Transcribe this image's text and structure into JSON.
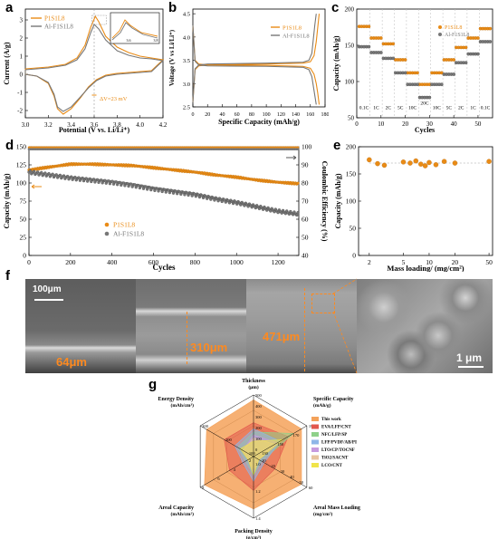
{
  "panels": {
    "a": "a",
    "b": "b",
    "c": "c",
    "d": "d",
    "e": "e",
    "f": "f",
    "g": "g"
  },
  "colors": {
    "orange": "#e98b16",
    "gray": "#777777",
    "gray_dark": "#555555",
    "dash": "#c9c9c9"
  },
  "chart_data": [
    {
      "id": "a",
      "type": "line",
      "xlabel": "Potential (V vs. Li/Li⁺)",
      "ylabel": "Current (A/g)",
      "xlim": [
        3.0,
        4.2
      ],
      "ylim": [
        -2.4,
        3.6
      ],
      "xticks": [
        "3.0",
        "3.2",
        "3.4",
        "3.6",
        "3.8",
        "4.0",
        "4.2"
      ],
      "yticks": [
        "-2",
        "-1",
        "0",
        "1",
        "2",
        "3"
      ],
      "annotation": "ΔV=23 mV",
      "inset_ticks": [
        "3.6",
        "3.8"
      ],
      "series": [
        {
          "name": "P1S1L8",
          "color": "#e98b16",
          "x": [
            3.0,
            3.2,
            3.35,
            3.45,
            3.52,
            3.57,
            3.61,
            3.64,
            3.7,
            3.8,
            3.9,
            4.0,
            4.1,
            4.2,
            4.1,
            4.0,
            3.9,
            3.8,
            3.7,
            3.62,
            3.55,
            3.48,
            3.4,
            3.33,
            3.28,
            3.25,
            3.2,
            3.1,
            3.0
          ],
          "y": [
            0.3,
            0.4,
            0.55,
            0.9,
            1.6,
            2.6,
            3.2,
            2.9,
            2.1,
            1.5,
            1.2,
            1.0,
            0.9,
            0.8,
            0.2,
            0.15,
            0.1,
            0.05,
            -0.05,
            -0.3,
            -0.7,
            -1.3,
            -1.9,
            -2.2,
            -1.9,
            -1.2,
            -0.5,
            -0.1,
            0.0
          ]
        },
        {
          "name": "Al-F1S1L8",
          "color": "#777777",
          "x": [
            3.0,
            3.2,
            3.35,
            3.45,
            3.52,
            3.57,
            3.6,
            3.64,
            3.7,
            3.8,
            3.9,
            4.0,
            4.1,
            4.2,
            4.1,
            4.0,
            3.9,
            3.8,
            3.7,
            3.62,
            3.55,
            3.48,
            3.4,
            3.33,
            3.28,
            3.25,
            3.2,
            3.1,
            3.0
          ],
          "y": [
            0.25,
            0.35,
            0.5,
            0.8,
            1.4,
            2.3,
            2.75,
            2.5,
            1.9,
            1.3,
            1.05,
            0.9,
            0.85,
            0.75,
            0.15,
            0.1,
            0.05,
            0.0,
            -0.1,
            -0.35,
            -0.75,
            -1.25,
            -1.8,
            -2.05,
            -1.8,
            -1.1,
            -0.45,
            -0.1,
            0.0
          ]
        }
      ]
    },
    {
      "id": "b",
      "type": "line",
      "xlabel": "Specific Capacity (mAh/g)",
      "ylabel": "Voltage (V vs Li/Li⁺)",
      "xlim": [
        0,
        180
      ],
      "ylim": [
        2.5,
        4.6
      ],
      "xticks": [
        "0",
        "20",
        "40",
        "60",
        "80",
        "100",
        "120",
        "140",
        "160",
        "180"
      ],
      "yticks": [
        "2.5",
        "3.0",
        "3.5",
        "4.0",
        "4.5"
      ],
      "series": [
        {
          "name": "P1S1L8",
          "color": "#e98b16",
          "charge": {
            "x": [
              0,
              3,
              8,
              20,
              100,
              150,
              160,
              165,
              168,
              170,
              172
            ],
            "y": [
              2.6,
              3.3,
              3.38,
              3.4,
              3.42,
              3.44,
              3.47,
              3.6,
              3.9,
              4.2,
              4.5
            ]
          },
          "discharge": {
            "x": [
              0,
              3,
              8,
              20,
              100,
              150,
              160,
              165,
              168,
              170,
              172
            ],
            "y": [
              4.25,
              3.5,
              3.42,
              3.4,
              3.39,
              3.37,
              3.33,
              3.2,
              3.0,
              2.8,
              2.55
            ]
          }
        },
        {
          "name": "Al-F1S1L8",
          "color": "#777777",
          "charge": {
            "x": [
              0,
              3,
              8,
              20,
              100,
              150,
              158,
              162,
              164,
              166,
              168
            ],
            "y": [
              2.6,
              3.32,
              3.4,
              3.42,
              3.44,
              3.46,
              3.5,
              3.65,
              3.95,
              4.25,
              4.5
            ]
          },
          "discharge": {
            "x": [
              0,
              3,
              8,
              20,
              100,
              150,
              158,
              162,
              164,
              166,
              168
            ],
            "y": [
              4.25,
              3.48,
              3.4,
              3.38,
              3.37,
              3.35,
              3.3,
              3.15,
              2.95,
              2.75,
              2.55
            ]
          }
        }
      ]
    },
    {
      "id": "c",
      "type": "scatter",
      "xlabel": "Cycles",
      "ylabel": "Capacity (mAh/g)",
      "xlim": [
        0,
        56
      ],
      "ylim": [
        50,
        200
      ],
      "xticks": [
        "0",
        "10",
        "20",
        "30",
        "40",
        "50"
      ],
      "yticks": [
        "50",
        "100",
        "150",
        "200"
      ],
      "rate_labels": [
        "0.1C",
        "1C",
        "2C",
        "5C",
        "10C",
        "20C",
        "10C",
        "5C",
        "2C",
        "1C",
        "0.1C"
      ],
      "series": [
        {
          "name": "P1S1L8",
          "color": "#e98b16",
          "values": [
            176,
            176,
            176,
            176,
            176,
            160,
            160,
            160,
            160,
            160,
            152,
            152,
            152,
            152,
            152,
            130,
            130,
            130,
            130,
            130,
            112,
            112,
            112,
            112,
            112,
            96,
            96,
            96,
            96,
            96,
            112,
            112,
            112,
            112,
            112,
            130,
            130,
            130,
            130,
            130,
            147,
            147,
            147,
            147,
            147,
            160,
            160,
            160,
            160,
            160,
            173,
            173,
            173,
            173,
            173
          ]
        },
        {
          "name": "Al-F1S1L8",
          "color": "#777777",
          "values": [
            148,
            148,
            148,
            148,
            148,
            140,
            140,
            140,
            140,
            140,
            132,
            132,
            132,
            132,
            132,
            112,
            112,
            112,
            112,
            112,
            96,
            96,
            96,
            96,
            96,
            78,
            78,
            78,
            78,
            78,
            96,
            96,
            96,
            96,
            96,
            110,
            110,
            110,
            110,
            110,
            126,
            126,
            126,
            126,
            126,
            138,
            138,
            138,
            138,
            138,
            155,
            155,
            155,
            155,
            155
          ]
        }
      ]
    },
    {
      "id": "d",
      "type": "scatter",
      "xlabel": "Cycles",
      "ylabel": "Capacity (mAh/g)",
      "y2label": "Coulombic Efficiency (%)",
      "xlim": [
        0,
        1300
      ],
      "ylim": [
        0,
        150
      ],
      "y2lim": [
        40,
        100
      ],
      "xticks": [
        "0",
        "200",
        "400",
        "600",
        "800",
        "1000",
        "1200"
      ],
      "yticks": [
        "0",
        "25",
        "50",
        "75",
        "100",
        "125",
        "150"
      ],
      "y2ticks": [
        "40",
        "50",
        "60",
        "70",
        "80",
        "90",
        "100"
      ],
      "series": [
        {
          "name": "P1S1L8",
          "color": "#e98b16",
          "x": [
            0,
            100,
            200,
            300,
            400,
            500,
            600,
            700,
            800,
            900,
            1000,
            1100,
            1200,
            1300
          ],
          "y": [
            118,
            122,
            126,
            126,
            125,
            124,
            121,
            118,
            115,
            111,
            108,
            104,
            101,
            99
          ]
        },
        {
          "name": "Al-F1S1L8",
          "color": "#777777",
          "x": [
            0,
            100,
            200,
            300,
            400,
            500,
            600,
            700,
            800,
            900,
            1000,
            1100,
            1200,
            1300
          ],
          "y": [
            115,
            111,
            107,
            104,
            101,
            97,
            92,
            88,
            84,
            78,
            73,
            67,
            61,
            57
          ]
        }
      ],
      "ce_series": [
        {
          "name": "P1S1L8",
          "color": "#e98b16",
          "value": 99.6
        },
        {
          "name": "Al-F1S1L8",
          "color": "#777777",
          "value": 99.4
        }
      ]
    },
    {
      "id": "e",
      "type": "scatter",
      "xlabel": "Mass loading/ (mg/cm²)",
      "ylabel": "Capacity (mAh/g)",
      "xscale": "log",
      "xlim": [
        1.5,
        55
      ],
      "ylim": [
        0,
        200
      ],
      "xticks": [
        "2",
        "5",
        "10",
        "20",
        "50"
      ],
      "yticks": [
        "0",
        "50",
        "100",
        "150",
        "200"
      ],
      "series": [
        {
          "name": "",
          "color": "#e98b16",
          "x": [
            2,
            2.5,
            3,
            5,
            6,
            7,
            8,
            9,
            10,
            12,
            15,
            20,
            50
          ],
          "y": [
            176,
            169,
            166,
            172,
            170,
            174,
            168,
            165,
            171,
            167,
            173,
            170,
            173
          ]
        }
      ]
    },
    {
      "id": "g",
      "type": "radar",
      "axes": [
        {
          "name": "Thickness (μm)",
          "ticks": [
            "0",
            "100",
            "200",
            "300",
            "400",
            "500"
          ]
        },
        {
          "name": "Specific Capacity (mAh/g)",
          "ticks": [
            "130",
            "150",
            "170",
            "190"
          ]
        },
        {
          "name": "Areal Mass Loading (mg/cm²)",
          "ticks": [
            "10",
            "20",
            "30",
            "40",
            "50",
            "60"
          ]
        },
        {
          "name": "Packing Density (g/cm³)",
          "ticks": [
            "1.0",
            "1.2",
            "1.4"
          ]
        },
        {
          "name": "Areal Capacity (mAh/cm²)",
          "ticks": [
            "2",
            "4",
            "6",
            "8"
          ]
        },
        {
          "name": "Energy Density (mAh/cm³)",
          "ticks": [
            "100",
            "200",
            "300"
          ]
        }
      ],
      "series": [
        {
          "name": "This work",
          "color": "#f4a25a",
          "values": [
            0.92,
            0.9,
            0.9,
            0.85,
            0.92,
            0.88
          ]
        },
        {
          "name": "EVA/LFP/CNT",
          "color": "#e2574c",
          "values": [
            0.55,
            0.65,
            0.4,
            0.55,
            0.45,
            0.55
          ]
        },
        {
          "name": "NFC/LFP/SP",
          "color": "#8fd18a",
          "values": [
            0.4,
            0.75,
            0.15,
            0.3,
            0.15,
            0.3
          ]
        },
        {
          "name": "LFP/PVDF/AB/PI",
          "color": "#8fb6e8",
          "values": [
            0.45,
            0.5,
            0.2,
            0.4,
            0.2,
            0.35
          ]
        },
        {
          "name": "LTO/CP/TOCNF",
          "color": "#c79adf",
          "values": [
            0.35,
            0.45,
            0.1,
            0.25,
            0.1,
            0.2
          ]
        },
        {
          "name": "TiO2/SACNT",
          "color": "#e8c4a0",
          "values": [
            0.3,
            0.4,
            0.1,
            0.2,
            0.1,
            0.2
          ]
        },
        {
          "name": "LCO/CNT",
          "color": "#f0e44a",
          "values": [
            0.25,
            0.55,
            0.1,
            0.3,
            0.1,
            0.25
          ]
        }
      ]
    }
  ],
  "sem": {
    "images": [
      {
        "thickness": "64μm",
        "scale": "100μm"
      },
      {
        "thickness": "310μm"
      },
      {
        "thickness": "471μm"
      },
      {
        "scale": "1 μm"
      }
    ]
  }
}
